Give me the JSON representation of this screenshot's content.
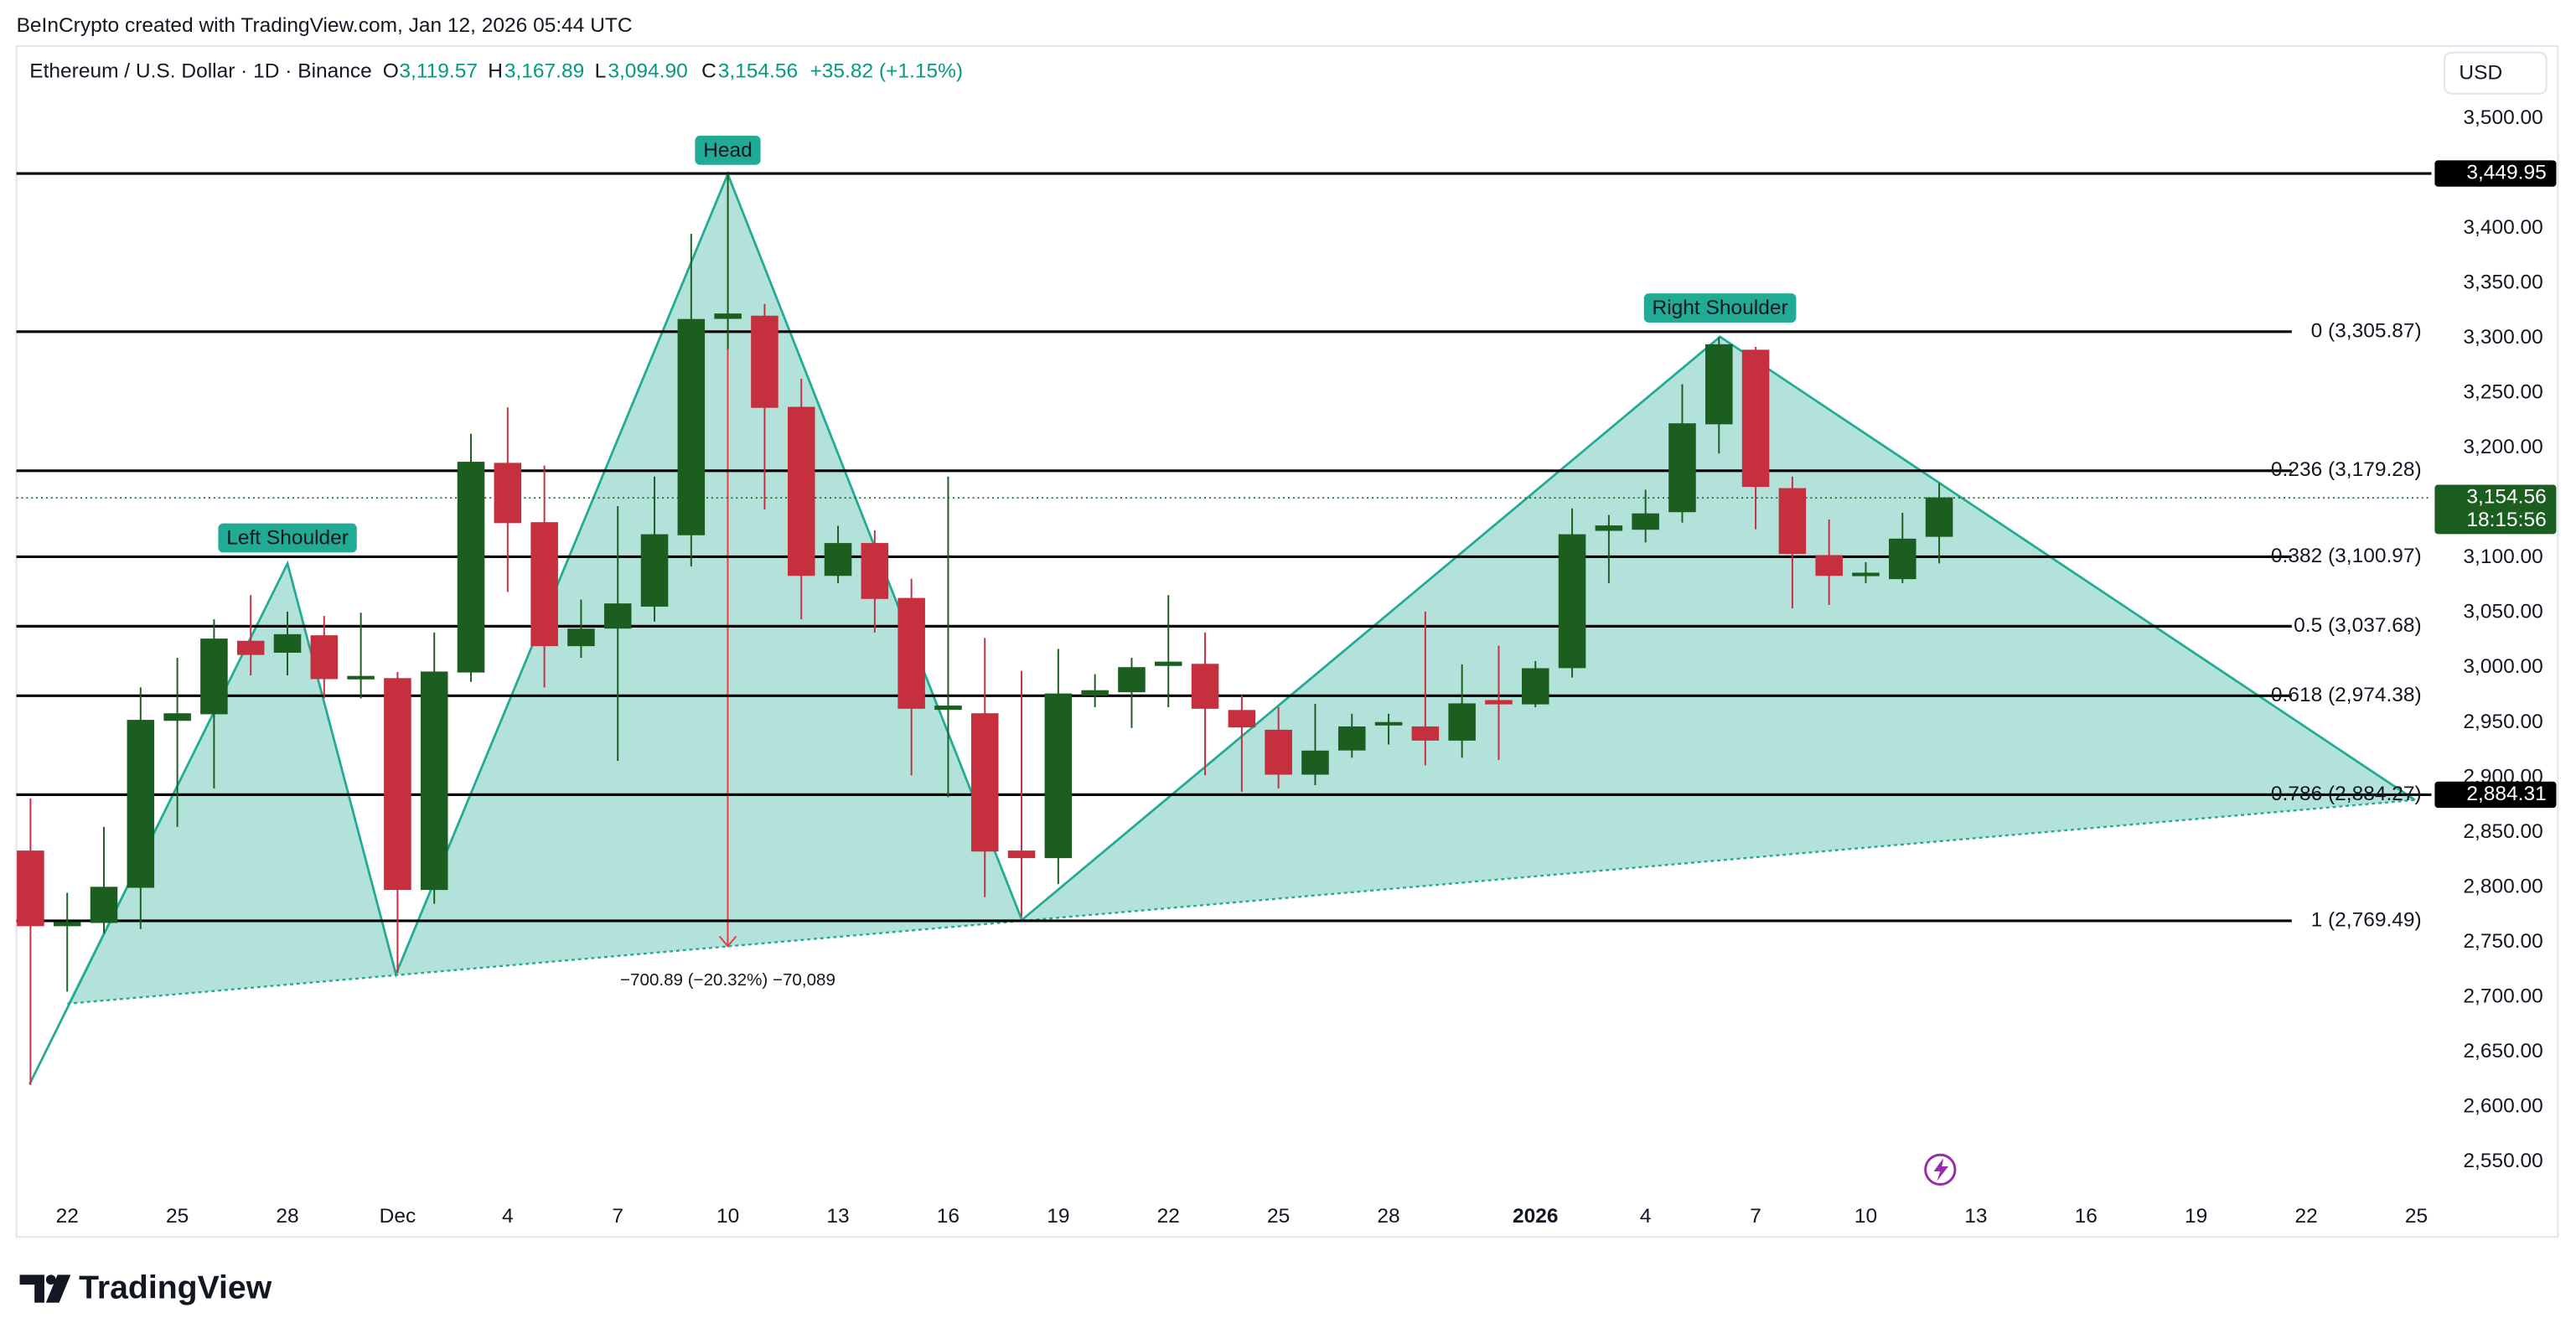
{
  "watermark": "BeInCrypto created with TradingView.com, Jan 12, 2026 05:44 UTC",
  "footer": {
    "brand": "TradingView"
  },
  "chart_data": {
    "type": "candlestick",
    "title": "Ethereum / U.S. Dollar · 1D · Binance",
    "ohlc_header": {
      "open_label": "O",
      "open": "3,119.57",
      "high_label": "H",
      "high": "3,167.89",
      "low_label": "L",
      "low": "3,094.90",
      "close_label": "C",
      "close": "3,154.56",
      "change": "+35.82 (+1.15%)"
    },
    "currency": "USD",
    "up_color": "#1b5e20",
    "down_color": "#c62f3e",
    "pattern_color": "#22ab94",
    "categories": [
      null,
      "22",
      null,
      null,
      "25",
      null,
      null,
      "28",
      null,
      null,
      "Dec",
      null,
      null,
      "4",
      null,
      null,
      "7",
      null,
      null,
      "10",
      null,
      null,
      "13",
      null,
      null,
      "16",
      null,
      null,
      "19",
      null,
      null,
      "22",
      null,
      null,
      "25",
      null,
      null,
      "28",
      null,
      null,
      null,
      "2026",
      null,
      null,
      "4",
      null,
      null,
      "7",
      null,
      null,
      "10",
      null,
      null,
      "13",
      null,
      null,
      "16",
      null,
      null,
      "19",
      null,
      null,
      "22",
      null,
      null,
      "25"
    ],
    "open": [
      2833,
      2765,
      2768,
      2800,
      2952,
      2958,
      3024,
      3014,
      3029,
      2990,
      2990,
      2798,
      2996,
      3186,
      3132,
      3020,
      3036,
      3056,
      3121,
      3318,
      3320,
      3237,
      3084,
      3113,
      3063,
      2962,
      2958,
      2833,
      2827,
      2975,
      2978,
      3002,
      3003,
      2961,
      2943,
      2903,
      2925,
      2948,
      2946,
      2934,
      2970,
      2967,
      3000,
      3125,
      3126,
      3142,
      3222,
      3289,
      3163,
      3102,
      3084,
      3081,
      3119.57,
      null,
      null,
      null,
      null,
      null,
      null,
      null,
      null,
      null,
      null,
      null,
      null,
      null
    ],
    "high": [
      2881,
      2795,
      2855,
      2982,
      3009,
      3044,
      3066,
      3051,
      3047,
      3050,
      2996,
      3032,
      3213,
      3237,
      3184,
      3062,
      3147,
      3174,
      3395,
      3450,
      3331,
      3263,
      3129,
      3125,
      3081,
      3174,
      3027,
      2997,
      3017,
      2994,
      3009,
      3066,
      3032,
      2975,
      2964,
      2967,
      2958,
      2958,
      3051,
      3003,
      3020,
      3006,
      3145,
      3139,
      3162,
      3258,
      3301,
      3292,
      3174,
      3135,
      3096,
      3141,
      3167.89,
      null,
      null,
      null,
      null,
      null,
      null,
      null,
      null,
      null,
      null,
      null,
      null,
      null
    ],
    "low": [
      2620,
      2705,
      2758,
      2762,
      2855,
      2890,
      2993,
      2993,
      2972,
      2972,
      2722,
      2785,
      2987,
      3069,
      2982,
      3009,
      2915,
      3042,
      3092,
      3290,
      3144,
      3044,
      3077,
      3032,
      2902,
      2882,
      2791,
      2773,
      2803,
      2964,
      2945,
      2964,
      2902,
      2887,
      2890,
      2893,
      2918,
      2930,
      2911,
      2918,
      2916,
      2964,
      2991,
      3077,
      3114,
      3132,
      3195,
      3126,
      3054,
      3057,
      3077,
      3077,
      3094.9,
      null,
      null,
      null,
      null,
      null,
      null,
      null,
      null,
      null,
      null,
      null,
      null,
      null
    ],
    "close": [
      2765,
      2768,
      2800,
      2952,
      2958,
      3026,
      3012,
      3030,
      2990,
      2992,
      2798,
      2996,
      3187,
      3132,
      3020,
      3035,
      3058,
      3121,
      3317,
      3322,
      3237,
      3084,
      3113,
      3063,
      2963,
      2965,
      2833,
      2827,
      2976,
      2979,
      3000,
      3005,
      2963,
      2946,
      2903,
      2924,
      2946,
      2950,
      2934,
      2967,
      2967,
      2999,
      3121,
      3129,
      3140,
      3222,
      3294,
      3165,
      3104,
      3084,
      3086,
      3117,
      3154.56,
      null,
      null,
      null,
      null,
      null,
      null,
      null,
      null,
      null,
      null,
      null,
      null,
      null
    ],
    "ylim": [
      2519,
      3563
    ],
    "yticks": [
      {
        "value": 3500,
        "label": "3,500.00"
      },
      {
        "value": 3400,
        "label": "3,400.00"
      },
      {
        "value": 3350,
        "label": "3,350.00"
      },
      {
        "value": 3300,
        "label": "3,300.00"
      },
      {
        "value": 3250,
        "label": "3,250.00"
      },
      {
        "value": 3200,
        "label": "3,200.00"
      },
      {
        "value": 3100,
        "label": "3,100.00"
      },
      {
        "value": 3050,
        "label": "3,050.00"
      },
      {
        "value": 3000,
        "label": "3,000.00"
      },
      {
        "value": 2950,
        "label": "2,950.00"
      },
      {
        "value": 2900,
        "label": "2,900.00"
      },
      {
        "value": 2850,
        "label": "2,850.00"
      },
      {
        "value": 2800,
        "label": "2,800.00"
      },
      {
        "value": 2750,
        "label": "2,750.00"
      },
      {
        "value": 2700,
        "label": "2,700.00"
      },
      {
        "value": 2650,
        "label": "2,650.00"
      },
      {
        "value": 2600,
        "label": "2,600.00"
      },
      {
        "value": 2550,
        "label": "2,550.00"
      }
    ],
    "grid": false,
    "fib_levels": [
      {
        "value": 3305.87,
        "label": "0 (3,305.87)"
      },
      {
        "value": 3179.28,
        "label": "0.236 (3,179.28)"
      },
      {
        "value": 3100.97,
        "label": "0.382 (3,100.97)"
      },
      {
        "value": 3037.68,
        "label": "0.5 (3,037.68)"
      },
      {
        "value": 2974.38,
        "label": "0.618 (2,974.38)"
      },
      {
        "value": 2884.27,
        "label": "0.786 (2,884.27)"
      },
      {
        "value": 2769.49,
        "label": "1 (2,769.49)"
      }
    ],
    "price_lines": [
      {
        "value": 3449.95,
        "label": "3,449.95"
      },
      {
        "value": 2884.31,
        "label": "2,884.31"
      }
    ],
    "last_price": {
      "value": 3154.56,
      "label": "3,154.56",
      "countdown": "18:15:56"
    },
    "annotations": {
      "left_shoulder": "Left Shoulder",
      "head": "Head",
      "right_shoulder": "Right Shoulder",
      "measure": "−700.89 (−20.32%) −70,089"
    }
  }
}
